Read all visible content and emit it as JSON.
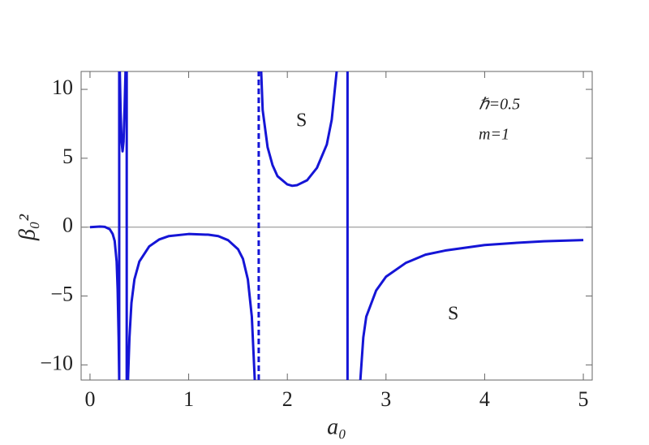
{
  "chart_data": {
    "type": "line",
    "x_label": "a₀",
    "y_label": "β₀²",
    "annotations": [
      "S",
      "S",
      "ℏ=0.5",
      "m=1"
    ],
    "xlim": [
      -0.09,
      5.09
    ],
    "ylim": [
      -11.1,
      11.3
    ],
    "xticks": [
      0,
      1,
      2,
      3,
      4,
      5
    ],
    "yticks": [
      {
        "value": -10,
        "label": "−10"
      },
      {
        "value": -5,
        "label": "−5"
      },
      0,
      5,
      10
    ],
    "zero_line": true,
    "series": [
      {
        "color": "#1515d6",
        "dashed": false,
        "x": [
          0,
          0.05,
          0.1,
          0.15,
          0.2,
          0.23,
          0.25,
          0.27,
          0.28,
          0.29,
          0.296,
          0.296,
          null,
          0.302,
          0.31,
          0.32,
          0.33,
          0.34,
          0.35,
          0.36,
          null,
          0.372,
          0.372,
          null,
          0.385,
          0.4,
          0.42,
          0.45,
          0.5,
          0.6,
          0.7,
          0.8,
          1.0,
          1.2,
          1.3,
          1.4,
          1.5,
          1.55,
          1.6,
          1.64,
          1.67,
          null,
          1.735,
          1.75,
          1.8,
          1.85,
          1.9,
          2.0,
          2.05,
          2.1,
          2.2,
          2.3,
          2.4,
          2.45,
          2.5,
          null,
          2.61,
          2.61,
          null,
          2.74,
          2.77,
          2.8,
          2.9,
          3.0,
          3.2,
          3.4,
          3.6,
          3.8,
          4.0,
          4.3,
          4.6,
          5.0
        ],
        "values": [
          0,
          0.02,
          0.04,
          0.02,
          -0.15,
          -0.5,
          -1,
          -2.5,
          -4.5,
          -8,
          -11.1,
          11.3,
          null,
          11.3,
          8.5,
          6.2,
          5.5,
          6.2,
          8.5,
          11.3,
          null,
          11.3,
          -11.1,
          null,
          -11.1,
          -8,
          -5.5,
          -3.8,
          -2.5,
          -1.4,
          -0.9,
          -0.65,
          -0.5,
          -0.55,
          -0.65,
          -0.95,
          -1.6,
          -2.3,
          -3.8,
          -6.5,
          -11.1,
          null,
          11.3,
          8.5,
          5.8,
          4.5,
          3.7,
          3.1,
          3.0,
          3.05,
          3.4,
          4.3,
          6,
          7.8,
          11.3,
          null,
          11.3,
          -11.1,
          null,
          -11.1,
          -8,
          -6.5,
          -4.6,
          -3.6,
          -2.6,
          -2.0,
          -1.7,
          -1.5,
          -1.3,
          -1.15,
          -1.03,
          -0.94
        ]
      },
      {
        "color": "#1515d6",
        "dashed": true,
        "x": [
          1.71,
          1.71
        ],
        "values": [
          -11.1,
          11.3
        ]
      }
    ]
  }
}
